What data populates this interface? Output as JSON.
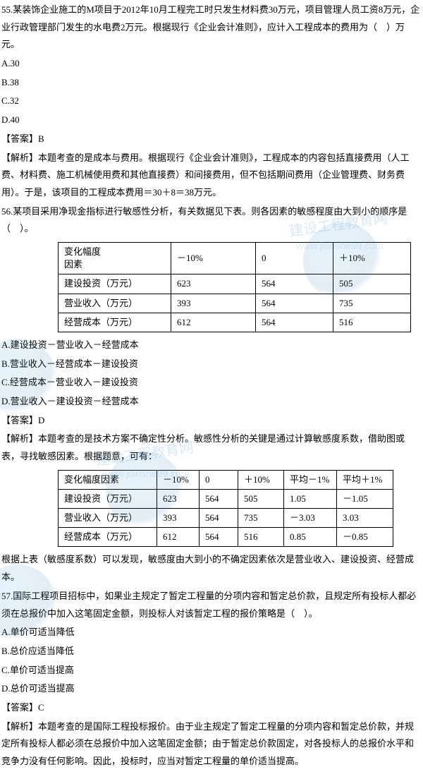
{
  "q55": {
    "stem": "55.某装饰企业施工的M项目于2012年10月工程完工时只发生材料费30万元，项目管理人员工资8万元，企业行政管理部门发生的水电费2万元。根据现行《企业会计准则》，应计入工程成本的费用为（　）万元。",
    "optA": "A.30",
    "optB": "B.38",
    "optC": "C.32",
    "optD": "D.40",
    "answer": "【答案】B",
    "explain": "【解析】本题考查的是成本与费用。根据现行《企业会计准则》，工程成本的内容包括直接费用（人工费、材料费、施工机械使用费和其他直接费）和间接费用，但不包括期间费用（企业管理费、财务费用）。于是，该项目的工程成本费用＝30＋8＝38万元。"
  },
  "q56": {
    "stem": "56.某项目采用净现金指标进行敏感性分析，有关数据见下表。则各因素的敏感程度由大到小的顺序是（　）。",
    "table1": {
      "head": [
        "变化幅度\n因素",
        "－10%",
        "0",
        "＋10%"
      ],
      "rows": [
        [
          "建设投资（万元）",
          "623",
          "564",
          "505"
        ],
        [
          "营业收入（万元）",
          "393",
          "564",
          "735"
        ],
        [
          "经营成本（万元）",
          "612",
          "564",
          "516"
        ]
      ],
      "col_widths": [
        "160px",
        "120px",
        "110px",
        "110px"
      ]
    },
    "optA": "A.建设投资－营业收入－经营成本",
    "optB": "B.营业收入－经营成本－建设投资",
    "optC": "C.经营成本－营业收入－建设投资",
    "optD": "D.营业收入－建设投资－经营成本",
    "answer": "【答案】D",
    "explain1": "【解析】本题考查的是技术方案不确定性分析。敏感性分析的关键是通过计算敏感度系数，借助图或表，寻找敏感因素。根据题意，可有：",
    "table2": {
      "head": [
        "变化幅度因素",
        "－10%",
        "0",
        "＋10%",
        "平均－1%",
        "平均＋1%"
      ],
      "rows": [
        [
          "建设投资（万元）",
          "623",
          "564",
          "505",
          "1.05",
          "－1.05"
        ],
        [
          "营业收入（万元）",
          "393",
          "564",
          "735",
          "－3.03",
          "3.03"
        ],
        [
          "经营成本（万元）",
          "612",
          "564",
          "516",
          "0.85",
          "－0.85"
        ]
      ],
      "col_widths": [
        "140px",
        "60px",
        "55px",
        "65px",
        "75px",
        "80px"
      ]
    },
    "explain2": "根据上表（敏感度系数）可以发现，敏感度由大到小的不确定因素依次是营业收入、建设投资、经营成本。"
  },
  "q57": {
    "stem": "57.国际工程项目招标中，如果业主规定了暂定工程量的分项内容和暂定总价款，且规定所有投标人都必须在总报价中加入这笔固定金额，则投标人对该暂定工程的报价策略是（　）。",
    "optA": "A.单价可适当降低",
    "optB": "B.总价应适当降低",
    "optC": "C.单价可适当提高",
    "optD": "D.总价可适当提高",
    "answer": "【答案】C",
    "explain": "【解析】本题考查的是国际工程投标报价。由于业主规定了暂定工程量的分项内容和暂定总价款，并规定所有投标人都必须在总报价中加入这笔固定金额；由于暂定总价款固定，对各投标人的总报价水平和竞争力没有任何影响。因此，投标时，应当对暂定工程量的单价适当提高。"
  },
  "watermark": {
    "text": "建设工程教育网",
    "url": "www.jianshe99.com"
  }
}
